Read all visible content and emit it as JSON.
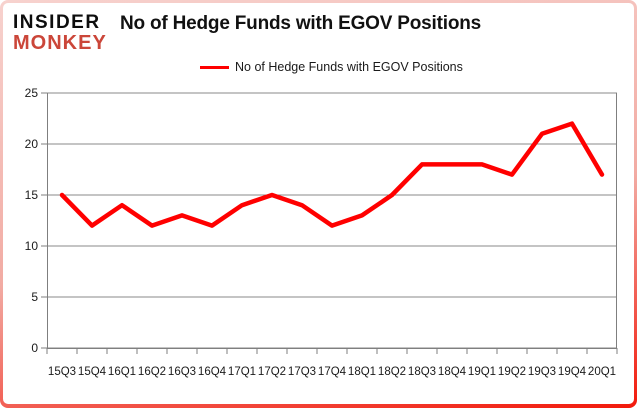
{
  "header": {
    "logo_line1": "INSIDER",
    "logo_line2": "MONKEY",
    "title": "No of Hedge Funds with EGOV Positions"
  },
  "legend": {
    "label": "No of Hedge Funds with EGOV Positions"
  },
  "chart_data": {
    "type": "line",
    "title": "No of Hedge Funds with EGOV Positions",
    "categories": [
      "15Q3",
      "15Q4",
      "16Q1",
      "16Q2",
      "16Q3",
      "16Q4",
      "17Q1",
      "17Q2",
      "17Q3",
      "17Q4",
      "18Q1",
      "18Q2",
      "18Q3",
      "18Q4",
      "19Q1",
      "19Q2",
      "19Q3",
      "19Q4",
      "20Q1"
    ],
    "series": [
      {
        "name": "No of Hedge Funds with EGOV Positions",
        "values": [
          15,
          12,
          14,
          12,
          13,
          12,
          14,
          15,
          14,
          12,
          13,
          15,
          18,
          18,
          18,
          17,
          21,
          22,
          17
        ],
        "color": "#ff0000"
      }
    ],
    "xlabel": "",
    "ylabel": "",
    "ylim": [
      0,
      25
    ],
    "yticks": [
      0,
      5,
      10,
      15,
      20,
      25
    ],
    "grid": true,
    "legend_position": "top"
  },
  "colors": {
    "line": "#ff0000",
    "grid": "#8a8a8a",
    "axis": "#7f7f7f",
    "tick_text": "#1a1a1a",
    "logo_red": "#cb4639",
    "border_top": "#f7d2ce",
    "border_bottom": "#f2190b"
  }
}
